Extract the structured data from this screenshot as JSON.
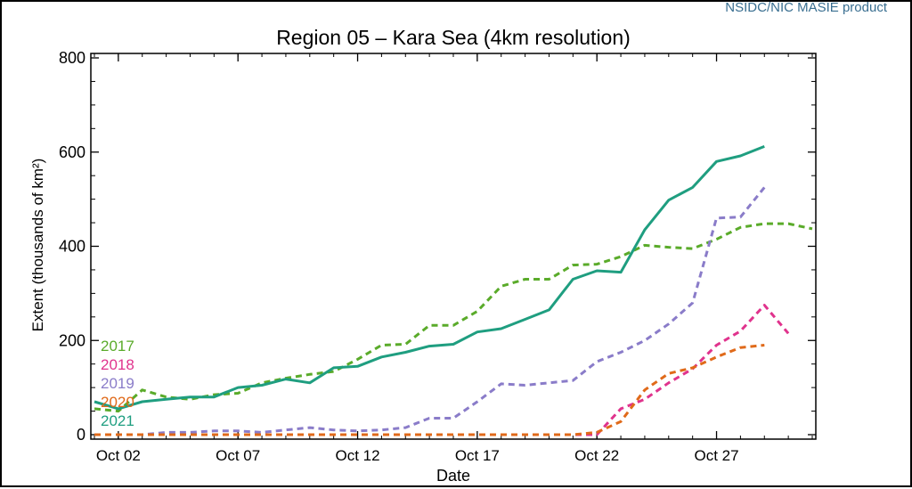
{
  "source_label": "NSIDC/NIC MASIE product",
  "chart_data": {
    "type": "line",
    "title": "Region 05 – Kara Sea (4km resolution)",
    "xlabel": "Date",
    "ylabel": "Extent (thousands of km²)",
    "ylim": [
      0,
      800
    ],
    "yticks": [
      0,
      200,
      400,
      600,
      800
    ],
    "day_range": [
      1,
      31
    ],
    "xtick_labels": [
      {
        "label": "Oct 02",
        "day": 2
      },
      {
        "label": "Oct 07",
        "day": 7
      },
      {
        "label": "Oct 12",
        "day": 12
      },
      {
        "label": "Oct 17",
        "day": 17
      },
      {
        "label": "Oct 22",
        "day": 22
      },
      {
        "label": "Oct 27",
        "day": 27
      }
    ],
    "x": [
      1,
      2,
      3,
      4,
      5,
      6,
      7,
      8,
      9,
      10,
      11,
      12,
      13,
      14,
      15,
      16,
      17,
      18,
      19,
      20,
      21,
      22,
      23,
      24,
      25,
      26,
      27,
      28,
      29,
      30,
      31
    ],
    "series": [
      {
        "name": "2017",
        "color": "#5aab2a",
        "dash": true,
        "values": [
          55,
          50,
          95,
          80,
          75,
          85,
          88,
          110,
          120,
          128,
          134,
          160,
          190,
          192,
          232,
          232,
          262,
          315,
          330,
          330,
          360,
          362,
          378,
          402,
          398,
          395,
          415,
          440,
          448,
          448,
          437
        ]
      },
      {
        "name": "2018",
        "color": "#e0338d",
        "dash": true,
        "values": [
          0,
          0,
          0,
          0,
          0,
          0,
          0,
          0,
          0,
          0,
          0,
          0,
          0,
          0,
          0,
          0,
          0,
          0,
          0,
          0,
          0,
          0,
          55,
          75,
          110,
          140,
          190,
          220,
          275,
          215,
          null
        ]
      },
      {
        "name": "2019",
        "color": "#8a7cc9",
        "dash": true,
        "values": [
          0,
          0,
          0,
          5,
          5,
          8,
          8,
          5,
          10,
          15,
          10,
          8,
          10,
          15,
          35,
          35,
          70,
          108,
          105,
          110,
          115,
          155,
          175,
          200,
          235,
          280,
          460,
          462,
          525,
          null,
          null
        ]
      },
      {
        "name": "2020",
        "color": "#e06a1a",
        "dash": true,
        "values": [
          0,
          0,
          0,
          0,
          0,
          0,
          0,
          0,
          0,
          0,
          0,
          0,
          0,
          0,
          0,
          0,
          0,
          0,
          0,
          0,
          0,
          5,
          28,
          95,
          130,
          142,
          165,
          185,
          190,
          null,
          null
        ]
      },
      {
        "name": "2021",
        "color": "#1f9e80",
        "dash": false,
        "values": [
          70,
          55,
          70,
          75,
          80,
          80,
          100,
          105,
          118,
          110,
          142,
          145,
          165,
          175,
          188,
          192,
          218,
          225,
          245,
          265,
          330,
          348,
          345,
          435,
          498,
          525,
          580,
          592,
          612,
          null,
          null
        ]
      }
    ]
  }
}
